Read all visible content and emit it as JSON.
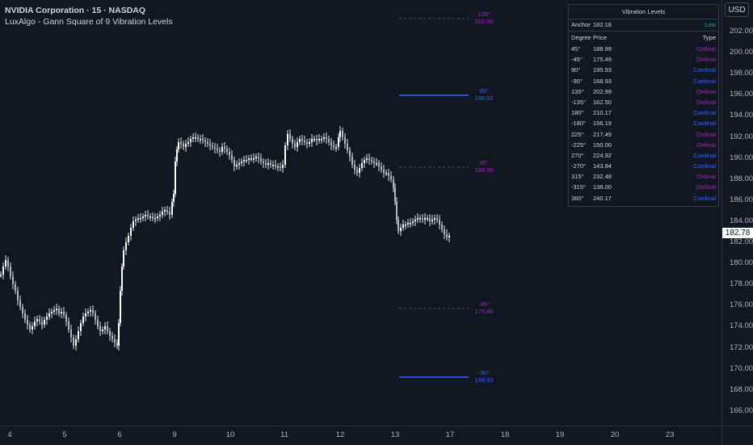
{
  "header": {
    "title": "NVIDIA Corporation · 15 · NASDAQ",
    "indicator": "LuxAlgo - Gann Square of 9 Vibration Levels"
  },
  "currency_button": "USD",
  "current_price": "182.78",
  "price_axis": {
    "ticks": [
      "202.00",
      "200.00",
      "198.00",
      "196.00",
      "194.00",
      "192.00",
      "190.00",
      "188.00",
      "186.00",
      "184.00",
      "182.00",
      "180.00",
      "178.00",
      "176.00",
      "174.00",
      "172.00",
      "170.00",
      "168.00",
      "166.00"
    ]
  },
  "time_axis": {
    "ticks": [
      "4",
      "5",
      "6",
      "9",
      "10",
      "11",
      "12",
      "13",
      "17",
      "18",
      "19",
      "20",
      "23"
    ]
  },
  "levels": [
    {
      "degree": "135°",
      "price": "202.99",
      "color": "#9c27b0",
      "style": "dashed"
    },
    {
      "degree": "90°",
      "price": "195.93",
      "color": "#2962ff",
      "style": "solid"
    },
    {
      "degree": "45°",
      "price": "188.99",
      "color": "#9c27b0",
      "style": "dashed"
    },
    {
      "degree": "-45°",
      "price": "175.49",
      "color": "#9c27b0",
      "style": "dashed"
    },
    {
      "degree": "-90°",
      "price": "168.93",
      "color": "#2962ff",
      "style": "solid"
    }
  ],
  "table": {
    "title": "Vibration Levels",
    "anchor_label": "Anchor",
    "anchor_value": "182.18",
    "anchor_type": "Low",
    "headers": {
      "degree": "Degree",
      "price": "Price",
      "type": "Type"
    },
    "rows": [
      {
        "degree": "45°",
        "price": "188.99",
        "type": "Ordinal"
      },
      {
        "degree": "-45°",
        "price": "175.49",
        "type": "Ordinal"
      },
      {
        "degree": "90°",
        "price": "195.93",
        "type": "Cardinal"
      },
      {
        "degree": "-90°",
        "price": "168.93",
        "type": "Cardinal"
      },
      {
        "degree": "135°",
        "price": "202.99",
        "type": "Ordinal"
      },
      {
        "degree": "-135°",
        "price": "162.50",
        "type": "Ordinal"
      },
      {
        "degree": "180°",
        "price": "210.17",
        "type": "Cardinal"
      },
      {
        "degree": "-180°",
        "price": "156.19",
        "type": "Cardinal"
      },
      {
        "degree": "225°",
        "price": "217.49",
        "type": "Ordinal"
      },
      {
        "degree": "-225°",
        "price": "150.00",
        "type": "Ordinal"
      },
      {
        "degree": "270°",
        "price": "224.92",
        "type": "Cardinal"
      },
      {
        "degree": "-270°",
        "price": "143.94",
        "type": "Cardinal"
      },
      {
        "degree": "315°",
        "price": "232.48",
        "type": "Ordinal"
      },
      {
        "degree": "-315°",
        "price": "138.00",
        "type": "Ordinal"
      },
      {
        "degree": "360°",
        "price": "240.17",
        "type": "Cardinal"
      }
    ]
  },
  "colors": {
    "ordinal": "#9c27b0",
    "cardinal": "#2962ff",
    "low": "#26a69a",
    "background": "#131722"
  },
  "price_path": [
    [
      1,
      340
    ],
    [
      4,
      330
    ],
    [
      7,
      322
    ],
    [
      10,
      330
    ],
    [
      13,
      342
    ],
    [
      16,
      352
    ],
    [
      19,
      360
    ],
    [
      22,
      372
    ],
    [
      25,
      380
    ],
    [
      28,
      388
    ],
    [
      31,
      396
    ],
    [
      34,
      402
    ],
    [
      37,
      408
    ],
    [
      40,
      404
    ],
    [
      43,
      398
    ],
    [
      46,
      395
    ],
    [
      49,
      398
    ],
    [
      52,
      402
    ],
    [
      55,
      396
    ],
    [
      58,
      392
    ],
    [
      61,
      388
    ],
    [
      64,
      386
    ],
    [
      67,
      384
    ],
    [
      70,
      382
    ],
    [
      73,
      388
    ],
    [
      76,
      386
    ],
    [
      79,
      390
    ],
    [
      82,
      398
    ],
    [
      85,
      408
    ],
    [
      88,
      418
    ],
    [
      91,
      428
    ],
    [
      94,
      420
    ],
    [
      97,
      410
    ],
    [
      100,
      400
    ],
    [
      103,
      392
    ],
    [
      106,
      388
    ],
    [
      109,
      386
    ],
    [
      112,
      384
    ],
    [
      115,
      388
    ],
    [
      118,
      396
    ],
    [
      121,
      404
    ],
    [
      124,
      410
    ],
    [
      127,
      408
    ],
    [
      130,
      404
    ],
    [
      133,
      410
    ],
    [
      136,
      416
    ],
    [
      139,
      420
    ],
    [
      142,
      424
    ],
    [
      145,
      428
    ],
    [
      147,
      400
    ],
    [
      149,
      360
    ],
    [
      151,
      330
    ],
    [
      153,
      310
    ],
    [
      156,
      300
    ],
    [
      159,
      292
    ],
    [
      162,
      282
    ],
    [
      165,
      274
    ],
    [
      168,
      272
    ],
    [
      171,
      270
    ],
    [
      174,
      270
    ],
    [
      177,
      268
    ],
    [
      180,
      266
    ],
    [
      183,
      268
    ],
    [
      186,
      268
    ],
    [
      189,
      270
    ],
    [
      192,
      270
    ],
    [
      195,
      268
    ],
    [
      198,
      266
    ],
    [
      201,
      262
    ],
    [
      204,
      260
    ],
    [
      207,
      262
    ],
    [
      210,
      266
    ],
    [
      213,
      250
    ],
    [
      215,
      240
    ],
    [
      217,
      200
    ],
    [
      219,
      185
    ],
    [
      221,
      176
    ],
    [
      224,
      178
    ],
    [
      227,
      182
    ],
    [
      230,
      178
    ],
    [
      233,
      176
    ],
    [
      236,
      172
    ],
    [
      239,
      170
    ],
    [
      242,
      170
    ],
    [
      245,
      172
    ],
    [
      248,
      172
    ],
    [
      251,
      174
    ],
    [
      254,
      176
    ],
    [
      257,
      178
    ],
    [
      260,
      180
    ],
    [
      263,
      182
    ],
    [
      266,
      184
    ],
    [
      269,
      186
    ],
    [
      272,
      188
    ],
    [
      275,
      182
    ],
    [
      278,
      184
    ],
    [
      281,
      188
    ],
    [
      284,
      192
    ],
    [
      287,
      198
    ],
    [
      290,
      206
    ],
    [
      293,
      204
    ],
    [
      296,
      202
    ],
    [
      299,
      200
    ],
    [
      302,
      198
    ],
    [
      305,
      198
    ],
    [
      308,
      196
    ],
    [
      311,
      196
    ],
    [
      314,
      196
    ],
    [
      317,
      194
    ],
    [
      320,
      196
    ],
    [
      323,
      200
    ],
    [
      326,
      202
    ],
    [
      329,
      204
    ],
    [
      332,
      202
    ],
    [
      335,
      204
    ],
    [
      338,
      204
    ],
    [
      341,
      206
    ],
    [
      344,
      206
    ],
    [
      347,
      208
    ],
    [
      350,
      204
    ],
    [
      353,
      180
    ],
    [
      356,
      166
    ],
    [
      359,
      172
    ],
    [
      362,
      178
    ],
    [
      365,
      182
    ],
    [
      368,
      176
    ],
    [
      371,
      172
    ],
    [
      374,
      174
    ],
    [
      377,
      176
    ],
    [
      380,
      178
    ],
    [
      383,
      176
    ],
    [
      386,
      172
    ],
    [
      389,
      172
    ],
    [
      392,
      174
    ],
    [
      395,
      172
    ],
    [
      398,
      172
    ],
    [
      401,
      170
    ],
    [
      404,
      172
    ],
    [
      407,
      176
    ],
    [
      410,
      180
    ],
    [
      413,
      182
    ],
    [
      416,
      182
    ],
    [
      419,
      170
    ],
    [
      421,
      162
    ],
    [
      424,
      170
    ],
    [
      427,
      178
    ],
    [
      430,
      186
    ],
    [
      433,
      194
    ],
    [
      436,
      204
    ],
    [
      439,
      210
    ],
    [
      442,
      214
    ],
    [
      445,
      208
    ],
    [
      448,
      202
    ],
    [
      451,
      198
    ],
    [
      454,
      196
    ],
    [
      457,
      198
    ],
    [
      460,
      200
    ],
    [
      463,
      202
    ],
    [
      466,
      202
    ],
    [
      469,
      206
    ],
    [
      472,
      210
    ],
    [
      475,
      214
    ],
    [
      478,
      214
    ],
    [
      481,
      218
    ],
    [
      484,
      222
    ],
    [
      487,
      232
    ],
    [
      489,
      250
    ],
    [
      491,
      272
    ],
    [
      493,
      286
    ],
    [
      496,
      282
    ],
    [
      499,
      278
    ],
    [
      502,
      278
    ],
    [
      505,
      276
    ],
    [
      508,
      276
    ],
    [
      511,
      274
    ],
    [
      514,
      272
    ],
    [
      517,
      270
    ],
    [
      520,
      270
    ],
    [
      523,
      272
    ],
    [
      526,
      270
    ],
    [
      529,
      270
    ],
    [
      532,
      274
    ],
    [
      535,
      272
    ],
    [
      538,
      270
    ],
    [
      541,
      272
    ],
    [
      544,
      278
    ],
    [
      547,
      284
    ],
    [
      550,
      290
    ],
    [
      553,
      294
    ],
    [
      556,
      292
    ]
  ]
}
